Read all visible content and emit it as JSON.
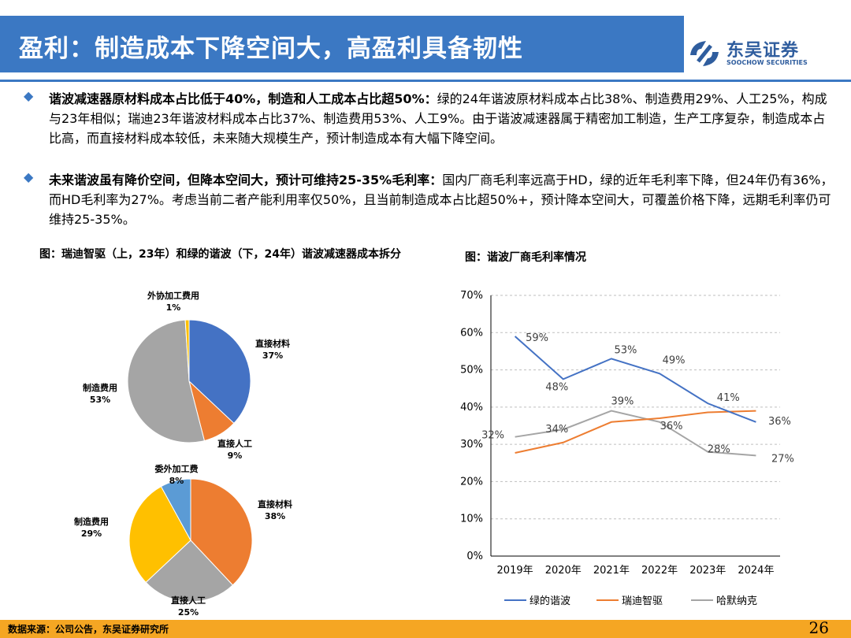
{
  "header": {
    "title": "盈利：制造成本下降空间大，高盈利具备韧性",
    "logo_cn": "东吴证券",
    "logo_en": "SOOCHOW SECURITIES"
  },
  "bullets": [
    {
      "bold": "谐波减速器原材料成本占比低于40%，制造和人工成本占比超50%：",
      "text": "绿的24年谐波原材料成本占比38%、制造费用29%、人工25%，构成与23年相似；瑞迪23年谐波材料成本占比37%、制造费用53%、人工9%。由于谐波减速器属于精密加工制造，生产工序复杂，制造成本占比高，而直接材料成本较低，未来随大规模生产，预计制造成本有大幅下降空间。"
    },
    {
      "bold": "未来谐波虽有降价空间，但降本空间大，预计可维持25-35%毛利率：",
      "text": "国内厂商毛利率远高于HD，绿的近年毛利率下降，但24年仍有36%，而HD毛利率为27%。考虑当前二者产能利用率仅50%，且当前制造成本占比超50%+，预计降本空间大，可覆盖价格下降，远期毛利率仍可维持25-35%。"
    }
  ],
  "figures": {
    "left_title": "图：瑞迪智驱（上，23年）和绿的谐波（下，24年）谐波减速器成本拆分",
    "right_title": "图：谐波厂商毛利率情况"
  },
  "chart_data": [
    {
      "type": "pie",
      "slices": [
        {
          "label": "直接材料",
          "value": 37,
          "display": "37%",
          "color": "#4472c4"
        },
        {
          "label": "直接人工",
          "value": 9,
          "display": "9%",
          "color": "#ed7d31"
        },
        {
          "label": "制造费用",
          "value": 53,
          "display": "53%",
          "color": "#a5a5a5"
        },
        {
          "label": "外协加工费用",
          "value": 1,
          "display": "1%",
          "color": "#ffc000"
        }
      ]
    },
    {
      "type": "pie",
      "slices": [
        {
          "label": "直接材料",
          "value": 38,
          "display": "38%",
          "color": "#ed7d31"
        },
        {
          "label": "直接人工",
          "value": 25,
          "display": "25%",
          "color": "#a5a5a5"
        },
        {
          "label": "制造费用",
          "value": 29,
          "display": "29%",
          "color": "#ffc000"
        },
        {
          "label": "委外加工费",
          "value": 8,
          "display": "8%",
          "color": "#5b9bd5"
        }
      ]
    },
    {
      "type": "line",
      "categories": [
        "2019年",
        "2020年",
        "2021年",
        "2022年",
        "2023年",
        "2024年"
      ],
      "yticks": [
        "0%",
        "10%",
        "20%",
        "30%",
        "40%",
        "50%",
        "60%",
        "70%"
      ],
      "ylim": [
        0,
        70
      ],
      "grid": true,
      "legend_position": "bottom",
      "series": [
        {
          "name": "绿的谐波",
          "color": "#4472c4",
          "values": [
            59,
            47.5,
            53,
            49,
            41,
            36
          ],
          "labels": [
            "59%",
            "48%",
            "53%",
            "49%",
            "41%",
            "36%"
          ]
        },
        {
          "name": "瑞迪智驱",
          "color": "#ed7d31",
          "values": [
            27.7,
            30.5,
            36,
            37,
            38.6,
            39
          ],
          "labels": [
            "",
            "",
            "",
            "",
            "",
            ""
          ]
        },
        {
          "name": "哈默纳克",
          "color": "#a5a5a5",
          "values": [
            32,
            34,
            39,
            36,
            28,
            27
          ],
          "labels": [
            "32%",
            "34%",
            "39%",
            "36%",
            "28%",
            "27%"
          ]
        }
      ]
    }
  ],
  "footer": {
    "source": "数据来源：公司公告，东吴证券研究所",
    "page": "26"
  }
}
